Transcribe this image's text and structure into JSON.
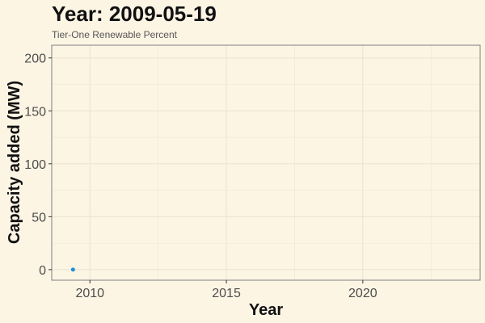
{
  "chart_data": {
    "type": "scatter",
    "title": "Year: 2009-05-19",
    "subtitle": "Tier-One Renewable Percent",
    "xlabel": "Year",
    "ylabel": "Capacity added (MW)",
    "xlim": [
      2008.6,
      2024.3
    ],
    "ylim": [
      -10,
      212
    ],
    "x_ticks": [
      2010,
      2015,
      2020
    ],
    "y_ticks": [
      0,
      50,
      100,
      150,
      200
    ],
    "grid": true,
    "points": [
      {
        "x": 2009.38,
        "y": 0
      }
    ],
    "colors": {
      "background": "#fdf5e4",
      "panel": "#fdf5e4",
      "grid": "#ece5d6",
      "point": "#1f8fd6"
    }
  }
}
